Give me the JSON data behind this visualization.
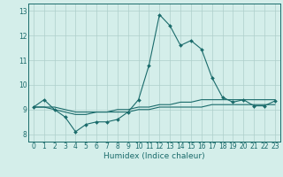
{
  "x": [
    0,
    1,
    2,
    3,
    4,
    5,
    6,
    7,
    8,
    9,
    10,
    11,
    12,
    13,
    14,
    15,
    16,
    17,
    18,
    19,
    20,
    21,
    22,
    23
  ],
  "line1": [
    9.1,
    9.4,
    9.0,
    8.7,
    8.1,
    8.4,
    8.5,
    8.5,
    8.6,
    8.9,
    9.4,
    10.8,
    12.85,
    12.4,
    11.6,
    11.8,
    11.45,
    10.3,
    9.5,
    9.3,
    9.4,
    9.15,
    9.15,
    9.35
  ],
  "line2": [
    9.1,
    9.1,
    9.0,
    8.9,
    8.8,
    8.8,
    8.9,
    8.9,
    9.0,
    9.0,
    9.1,
    9.1,
    9.2,
    9.2,
    9.3,
    9.3,
    9.4,
    9.4,
    9.4,
    9.4,
    9.4,
    9.4,
    9.4,
    9.4
  ],
  "line3": [
    9.1,
    9.1,
    9.1,
    9.0,
    8.9,
    8.9,
    8.9,
    8.9,
    8.9,
    8.9,
    9.0,
    9.0,
    9.1,
    9.1,
    9.1,
    9.1,
    9.1,
    9.2,
    9.2,
    9.2,
    9.2,
    9.2,
    9.2,
    9.2
  ],
  "bg_color": "#d4eeea",
  "line_color": "#1a6b6b",
  "grid_color": "#aecfcb",
  "xlabel": "Humidex (Indice chaleur)",
  "ylim": [
    7.7,
    13.3
  ],
  "yticks": [
    8,
    9,
    10,
    11,
    12,
    13
  ],
  "xticks": [
    0,
    1,
    2,
    3,
    4,
    5,
    6,
    7,
    8,
    9,
    10,
    11,
    12,
    13,
    14,
    15,
    16,
    17,
    18,
    19,
    20,
    21,
    22,
    23
  ],
  "tick_fontsize": 5.5,
  "xlabel_fontsize": 6.5,
  "ylabel_fontsize": 6.5,
  "marker_size": 2.0,
  "line_width": 0.8
}
